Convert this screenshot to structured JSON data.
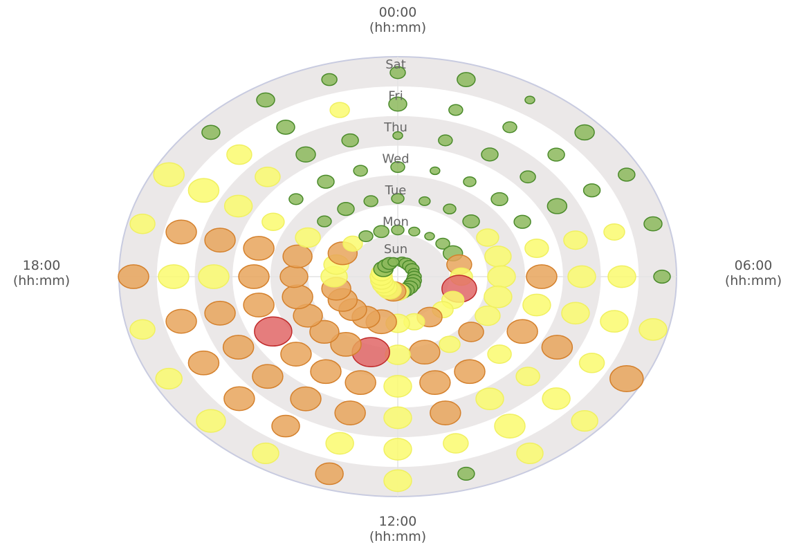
{
  "chart_data": {
    "type": "polar-bubble",
    "angular_axis": {
      "labels": [
        {
          "time": "00:00",
          "unit": "(hh:mm)",
          "hour": 0
        },
        {
          "time": "06:00",
          "unit": "(hh:mm)",
          "hour": 6
        },
        {
          "time": "12:00",
          "unit": "(hh:mm)",
          "hour": 12
        },
        {
          "time": "18:00",
          "unit": "(hh:mm)",
          "hour": 18
        }
      ]
    },
    "radial_axis": {
      "categories": [
        "Sun",
        "Mon",
        "Tue",
        "Wed",
        "Thu",
        "Fri",
        "Sat"
      ]
    },
    "grid": true,
    "colors": {
      "green": {
        "fill": "#8cb85c",
        "stroke": "#4a8a2a"
      },
      "yellow": {
        "fill": "#fafa6e",
        "stroke": "#f0f060"
      },
      "orange": {
        "fill": "#e8a45c",
        "stroke": "#d4802c"
      },
      "red": {
        "fill": "#e06666",
        "stroke": "#c02a2a"
      },
      "band": "#ebe8e8",
      "outer_ring": "#c8cbe0"
    },
    "points": [
      {
        "day": "Sun",
        "hour": 0,
        "size": 6,
        "color": "green"
      },
      {
        "day": "Sun",
        "hour": 1,
        "size": 9,
        "color": "green"
      },
      {
        "day": "Sun",
        "hour": 2,
        "size": 10,
        "color": "green"
      },
      {
        "day": "Sun",
        "hour": 3,
        "size": 10,
        "color": "green"
      },
      {
        "day": "Sun",
        "hour": 4,
        "size": 10,
        "color": "green"
      },
      {
        "day": "Sun",
        "hour": 5,
        "size": 8,
        "color": "green"
      },
      {
        "day": "Sun",
        "hour": 6,
        "size": 10,
        "color": "green"
      },
      {
        "day": "Sun",
        "hour": 7,
        "size": 11,
        "color": "green"
      },
      {
        "day": "Sun",
        "hour": 8,
        "size": 12,
        "color": "green"
      },
      {
        "day": "Sun",
        "hour": 9,
        "size": 12,
        "color": "green"
      },
      {
        "day": "Sun",
        "hour": 10,
        "size": 12,
        "color": "green"
      },
      {
        "day": "Sun",
        "hour": 11,
        "size": 13,
        "color": "green"
      },
      {
        "day": "Sun",
        "hour": 12,
        "size": 16,
        "color": "yellow"
      },
      {
        "day": "Sun",
        "hour": 13,
        "size": 18,
        "color": "orange"
      },
      {
        "day": "Sun",
        "hour": 14,
        "size": 17,
        "color": "yellow"
      },
      {
        "day": "Sun",
        "hour": 15,
        "size": 16,
        "color": "yellow"
      },
      {
        "day": "Sun",
        "hour": 16,
        "size": 16,
        "color": "yellow"
      },
      {
        "day": "Sun",
        "hour": 17,
        "size": 16,
        "color": "yellow"
      },
      {
        "day": "Sun",
        "hour": 18,
        "size": 16,
        "color": "yellow"
      },
      {
        "day": "Sun",
        "hour": 19,
        "size": 15,
        "color": "yellow"
      },
      {
        "day": "Sun",
        "hour": 20,
        "size": 14,
        "color": "green"
      },
      {
        "day": "Sun",
        "hour": 21,
        "size": 12,
        "color": "green"
      },
      {
        "day": "Sun",
        "hour": 22,
        "size": 11,
        "color": "green"
      },
      {
        "day": "Sun",
        "hour": 23,
        "size": 8,
        "color": "green"
      },
      {
        "day": "Mon",
        "hour": 0,
        "size": 9,
        "color": "green"
      },
      {
        "day": "Mon",
        "hour": 1,
        "size": 8,
        "color": "green"
      },
      {
        "day": "Mon",
        "hour": 2,
        "size": 7,
        "color": "green"
      },
      {
        "day": "Mon",
        "hour": 3,
        "size": 10,
        "color": "green"
      },
      {
        "day": "Mon",
        "hour": 4,
        "size": 14,
        "color": "green"
      },
      {
        "day": "Mon",
        "hour": 5,
        "size": 18,
        "color": "orange"
      },
      {
        "day": "Mon",
        "hour": 6,
        "size": 16,
        "color": "yellow"
      },
      {
        "day": "Mon",
        "hour": 7,
        "size": 25,
        "color": "red"
      },
      {
        "day": "Mon",
        "hour": 8,
        "size": 16,
        "color": "yellow"
      },
      {
        "day": "Mon",
        "hour": 9,
        "size": 15,
        "color": "yellow"
      },
      {
        "day": "Mon",
        "hour": 10,
        "size": 18,
        "color": "orange"
      },
      {
        "day": "Mon",
        "hour": 11,
        "size": 15,
        "color": "yellow"
      },
      {
        "day": "Mon",
        "hour": 12,
        "size": 17,
        "color": "yellow"
      },
      {
        "day": "Mon",
        "hour": 13,
        "size": 22,
        "color": "orange"
      },
      {
        "day": "Mon",
        "hour": 14,
        "size": 20,
        "color": "orange"
      },
      {
        "day": "Mon",
        "hour": 15,
        "size": 20,
        "color": "orange"
      },
      {
        "day": "Mon",
        "hour": 16,
        "size": 21,
        "color": "orange"
      },
      {
        "day": "Mon",
        "hour": 17,
        "size": 21,
        "color": "orange"
      },
      {
        "day": "Mon",
        "hour": 18,
        "size": 19,
        "color": "yellow"
      },
      {
        "day": "Mon",
        "hour": 19,
        "size": 18,
        "color": "yellow"
      },
      {
        "day": "Mon",
        "hour": 20,
        "size": 21,
        "color": "orange"
      },
      {
        "day": "Mon",
        "hour": 21,
        "size": 14,
        "color": "yellow"
      },
      {
        "day": "Mon",
        "hour": 22,
        "size": 10,
        "color": "green"
      },
      {
        "day": "Mon",
        "hour": 23,
        "size": 11,
        "color": "green"
      },
      {
        "day": "Tue",
        "hour": 0,
        "size": 9,
        "color": "green"
      },
      {
        "day": "Tue",
        "hour": 1,
        "size": 8,
        "color": "green"
      },
      {
        "day": "Tue",
        "hour": 2,
        "size": 9,
        "color": "green"
      },
      {
        "day": "Tue",
        "hour": 3,
        "size": 12,
        "color": "green"
      },
      {
        "day": "Tue",
        "hour": 4,
        "size": 16,
        "color": "yellow"
      },
      {
        "day": "Tue",
        "hour": 5,
        "size": 19,
        "color": "yellow"
      },
      {
        "day": "Tue",
        "hour": 6,
        "size": 20,
        "color": "yellow"
      },
      {
        "day": "Tue",
        "hour": 7,
        "size": 20,
        "color": "yellow"
      },
      {
        "day": "Tue",
        "hour": 8,
        "size": 18,
        "color": "yellow"
      },
      {
        "day": "Tue",
        "hour": 9,
        "size": 18,
        "color": "orange"
      },
      {
        "day": "Tue",
        "hour": 10,
        "size": 15,
        "color": "yellow"
      },
      {
        "day": "Tue",
        "hour": 11,
        "size": 22,
        "color": "orange"
      },
      {
        "day": "Tue",
        "hour": 12,
        "size": 18,
        "color": "yellow"
      },
      {
        "day": "Tue",
        "hour": 13,
        "size": 27,
        "color": "red"
      },
      {
        "day": "Tue",
        "hour": 14,
        "size": 22,
        "color": "orange"
      },
      {
        "day": "Tue",
        "hour": 15,
        "size": 21,
        "color": "orange"
      },
      {
        "day": "Tue",
        "hour": 16,
        "size": 21,
        "color": "orange"
      },
      {
        "day": "Tue",
        "hour": 17,
        "size": 22,
        "color": "orange"
      },
      {
        "day": "Tue",
        "hour": 18,
        "size": 20,
        "color": "orange"
      },
      {
        "day": "Tue",
        "hour": 19,
        "size": 21,
        "color": "orange"
      },
      {
        "day": "Tue",
        "hour": 20,
        "size": 18,
        "color": "yellow"
      },
      {
        "day": "Tue",
        "hour": 21,
        "size": 10,
        "color": "green"
      },
      {
        "day": "Tue",
        "hour": 22,
        "size": 12,
        "color": "green"
      },
      {
        "day": "Tue",
        "hour": 23,
        "size": 10,
        "color": "green"
      },
      {
        "day": "Wed",
        "hour": 0,
        "size": 10,
        "color": "green"
      },
      {
        "day": "Wed",
        "hour": 1,
        "size": 7,
        "color": "green"
      },
      {
        "day": "Wed",
        "hour": 2,
        "size": 9,
        "color": "green"
      },
      {
        "day": "Wed",
        "hour": 3,
        "size": 12,
        "color": "green"
      },
      {
        "day": "Wed",
        "hour": 4,
        "size": 12,
        "color": "green"
      },
      {
        "day": "Wed",
        "hour": 5,
        "size": 17,
        "color": "yellow"
      },
      {
        "day": "Wed",
        "hour": 6,
        "size": 22,
        "color": "orange"
      },
      {
        "day": "Wed",
        "hour": 7,
        "size": 20,
        "color": "yellow"
      },
      {
        "day": "Wed",
        "hour": 8,
        "size": 22,
        "color": "orange"
      },
      {
        "day": "Wed",
        "hour": 9,
        "size": 17,
        "color": "yellow"
      },
      {
        "day": "Wed",
        "hour": 10,
        "size": 22,
        "color": "orange"
      },
      {
        "day": "Wed",
        "hour": 11,
        "size": 22,
        "color": "orange"
      },
      {
        "day": "Wed",
        "hour": 12,
        "size": 20,
        "color": "yellow"
      },
      {
        "day": "Wed",
        "hour": 13,
        "size": 22,
        "color": "orange"
      },
      {
        "day": "Wed",
        "hour": 14,
        "size": 22,
        "color": "orange"
      },
      {
        "day": "Wed",
        "hour": 15,
        "size": 22,
        "color": "orange"
      },
      {
        "day": "Wed",
        "hour": 16,
        "size": 27,
        "color": "red"
      },
      {
        "day": "Wed",
        "hour": 17,
        "size": 22,
        "color": "orange"
      },
      {
        "day": "Wed",
        "hour": 18,
        "size": 22,
        "color": "orange"
      },
      {
        "day": "Wed",
        "hour": 19,
        "size": 22,
        "color": "orange"
      },
      {
        "day": "Wed",
        "hour": 20,
        "size": 16,
        "color": "yellow"
      },
      {
        "day": "Wed",
        "hour": 21,
        "size": 10,
        "color": "green"
      },
      {
        "day": "Wed",
        "hour": 22,
        "size": 12,
        "color": "green"
      },
      {
        "day": "Wed",
        "hour": 23,
        "size": 10,
        "color": "green"
      },
      {
        "day": "Thu",
        "hour": 0,
        "size": 7,
        "color": "green"
      },
      {
        "day": "Thu",
        "hour": 1,
        "size": 10,
        "color": "green"
      },
      {
        "day": "Thu",
        "hour": 2,
        "size": 12,
        "color": "green"
      },
      {
        "day": "Thu",
        "hour": 3,
        "size": 11,
        "color": "green"
      },
      {
        "day": "Thu",
        "hour": 4,
        "size": 14,
        "color": "green"
      },
      {
        "day": "Thu",
        "hour": 5,
        "size": 17,
        "color": "yellow"
      },
      {
        "day": "Thu",
        "hour": 6,
        "size": 20,
        "color": "yellow"
      },
      {
        "day": "Thu",
        "hour": 7,
        "size": 20,
        "color": "yellow"
      },
      {
        "day": "Thu",
        "hour": 8,
        "size": 22,
        "color": "orange"
      },
      {
        "day": "Thu",
        "hour": 9,
        "size": 17,
        "color": "yellow"
      },
      {
        "day": "Thu",
        "hour": 10,
        "size": 20,
        "color": "yellow"
      },
      {
        "day": "Thu",
        "hour": 11,
        "size": 22,
        "color": "orange"
      },
      {
        "day": "Thu",
        "hour": 12,
        "size": 20,
        "color": "yellow"
      },
      {
        "day": "Thu",
        "hour": 13,
        "size": 22,
        "color": "orange"
      },
      {
        "day": "Thu",
        "hour": 14,
        "size": 22,
        "color": "orange"
      },
      {
        "day": "Thu",
        "hour": 15,
        "size": 22,
        "color": "orange"
      },
      {
        "day": "Thu",
        "hour": 16,
        "size": 22,
        "color": "orange"
      },
      {
        "day": "Thu",
        "hour": 17,
        "size": 22,
        "color": "orange"
      },
      {
        "day": "Thu",
        "hour": 18,
        "size": 22,
        "color": "yellow"
      },
      {
        "day": "Thu",
        "hour": 19,
        "size": 22,
        "color": "orange"
      },
      {
        "day": "Thu",
        "hour": 20,
        "size": 20,
        "color": "yellow"
      },
      {
        "day": "Thu",
        "hour": 21,
        "size": 18,
        "color": "yellow"
      },
      {
        "day": "Thu",
        "hour": 22,
        "size": 14,
        "color": "green"
      },
      {
        "day": "Thu",
        "hour": 23,
        "size": 12,
        "color": "green"
      },
      {
        "day": "Fri",
        "hour": 0,
        "size": 13,
        "color": "green"
      },
      {
        "day": "Fri",
        "hour": 1,
        "size": 10,
        "color": "green"
      },
      {
        "day": "Fri",
        "hour": 2,
        "size": 10,
        "color": "green"
      },
      {
        "day": "Fri",
        "hour": 3,
        "size": 12,
        "color": "green"
      },
      {
        "day": "Fri",
        "hour": 4,
        "size": 12,
        "color": "green"
      },
      {
        "day": "Fri",
        "hour": 5,
        "size": 15,
        "color": "yellow"
      },
      {
        "day": "Fri",
        "hour": 6,
        "size": 20,
        "color": "yellow"
      },
      {
        "day": "Fri",
        "hour": 7,
        "size": 20,
        "color": "yellow"
      },
      {
        "day": "Fri",
        "hour": 8,
        "size": 18,
        "color": "yellow"
      },
      {
        "day": "Fri",
        "hour": 9,
        "size": 20,
        "color": "yellow"
      },
      {
        "day": "Fri",
        "hour": 10,
        "size": 22,
        "color": "yellow"
      },
      {
        "day": "Fri",
        "hour": 11,
        "size": 18,
        "color": "yellow"
      },
      {
        "day": "Fri",
        "hour": 12,
        "size": 20,
        "color": "yellow"
      },
      {
        "day": "Fri",
        "hour": 13,
        "size": 20,
        "color": "yellow"
      },
      {
        "day": "Fri",
        "hour": 14,
        "size": 20,
        "color": "orange"
      },
      {
        "day": "Fri",
        "hour": 15,
        "size": 22,
        "color": "orange"
      },
      {
        "day": "Fri",
        "hour": 16,
        "size": 22,
        "color": "orange"
      },
      {
        "day": "Fri",
        "hour": 17,
        "size": 22,
        "color": "orange"
      },
      {
        "day": "Fri",
        "hour": 18,
        "size": 22,
        "color": "yellow"
      },
      {
        "day": "Fri",
        "hour": 19,
        "size": 22,
        "color": "orange"
      },
      {
        "day": "Fri",
        "hour": 20,
        "size": 22,
        "color": "yellow"
      },
      {
        "day": "Fri",
        "hour": 21,
        "size": 18,
        "color": "yellow"
      },
      {
        "day": "Fri",
        "hour": 22,
        "size": 13,
        "color": "green"
      },
      {
        "day": "Fri",
        "hour": 23,
        "size": 14,
        "color": "yellow"
      },
      {
        "day": "Sat",
        "hour": 0,
        "size": 11,
        "color": "green"
      },
      {
        "day": "Sat",
        "hour": 1,
        "size": 13,
        "color": "green"
      },
      {
        "day": "Sat",
        "hour": 2,
        "size": 7,
        "color": "green"
      },
      {
        "day": "Sat",
        "hour": 3,
        "size": 14,
        "color": "green"
      },
      {
        "day": "Sat",
        "hour": 4,
        "size": 12,
        "color": "green"
      },
      {
        "day": "Sat",
        "hour": 5,
        "size": 13,
        "color": "green"
      },
      {
        "day": "Sat",
        "hour": 6,
        "size": 12,
        "color": "green"
      },
      {
        "day": "Sat",
        "hour": 7,
        "size": 20,
        "color": "yellow"
      },
      {
        "day": "Sat",
        "hour": 8,
        "size": 24,
        "color": "orange"
      },
      {
        "day": "Sat",
        "hour": 9,
        "size": 19,
        "color": "yellow"
      },
      {
        "day": "Sat",
        "hour": 10,
        "size": 19,
        "color": "yellow"
      },
      {
        "day": "Sat",
        "hour": 11,
        "size": 12,
        "color": "green"
      },
      {
        "day": "Sat",
        "hour": 12,
        "size": 20,
        "color": "yellow"
      },
      {
        "day": "Sat",
        "hour": 13,
        "size": 20,
        "color": "orange"
      },
      {
        "day": "Sat",
        "hour": 14,
        "size": 19,
        "color": "yellow"
      },
      {
        "day": "Sat",
        "hour": 15,
        "size": 21,
        "color": "yellow"
      },
      {
        "day": "Sat",
        "hour": 16,
        "size": 19,
        "color": "yellow"
      },
      {
        "day": "Sat",
        "hour": 17,
        "size": 18,
        "color": "yellow"
      },
      {
        "day": "Sat",
        "hour": 18,
        "size": 22,
        "color": "orange"
      },
      {
        "day": "Sat",
        "hour": 19,
        "size": 18,
        "color": "yellow"
      },
      {
        "day": "Sat",
        "hour": 20,
        "size": 22,
        "color": "yellow"
      },
      {
        "day": "Sat",
        "hour": 21,
        "size": 13,
        "color": "green"
      },
      {
        "day": "Sat",
        "hour": 22,
        "size": 13,
        "color": "green"
      },
      {
        "day": "Sat",
        "hour": 23,
        "size": 11,
        "color": "green"
      }
    ]
  }
}
